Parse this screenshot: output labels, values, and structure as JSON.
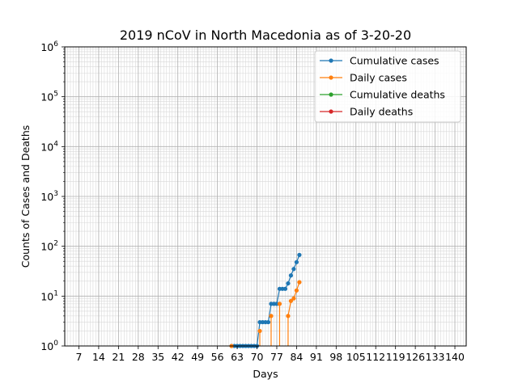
{
  "chart_data": {
    "type": "line",
    "title": "2019 nCoV in North Macedonia as of 3-20-20",
    "xlabel": "Days",
    "ylabel": "Counts of Cases and Deaths",
    "xlim": [
      2,
      144
    ],
    "ylim": [
      1,
      1000000
    ],
    "yscale": "log",
    "grid": true,
    "legend": "top-right",
    "xticks": [
      7,
      14,
      21,
      28,
      35,
      42,
      49,
      56,
      63,
      70,
      77,
      84,
      91,
      98,
      105,
      112,
      119,
      126,
      133,
      140
    ],
    "yticks": [
      {
        "value": 1,
        "base": "10",
        "exp": "0"
      },
      {
        "value": 10,
        "base": "10",
        "exp": "1"
      },
      {
        "value": 100,
        "base": "10",
        "exp": "2"
      },
      {
        "value": 1000,
        "base": "10",
        "exp": "3"
      },
      {
        "value": 10000,
        "base": "10",
        "exp": "4"
      },
      {
        "value": 100000,
        "base": "10",
        "exp": "5"
      },
      {
        "value": 1000000,
        "base": "10",
        "exp": "6"
      }
    ],
    "series": [
      {
        "name": "Cumulative cases",
        "color": "#1f77b4",
        "x": [
          61,
          62,
          63,
          64,
          65,
          66,
          67,
          68,
          69,
          70,
          71,
          72,
          73,
          74,
          75,
          76,
          77,
          78,
          79,
          80,
          81,
          82,
          83,
          84,
          85
        ],
        "y": [
          1,
          1,
          1,
          1,
          1,
          1,
          1,
          1,
          1,
          1,
          3,
          3,
          3,
          3,
          7,
          7,
          7,
          14,
          14,
          14,
          18,
          26,
          35,
          48,
          67
        ]
      },
      {
        "name": "Daily cases",
        "color": "#ff7f0e",
        "x": [
          61,
          71,
          75,
          78,
          81,
          82,
          83,
          84,
          85
        ],
        "y": [
          1,
          2,
          4,
          7,
          4,
          8,
          9,
          13,
          19
        ]
      },
      {
        "name": "Cumulative deaths",
        "color": "#2ca02c",
        "x": [],
        "y": []
      },
      {
        "name": "Daily deaths",
        "color": "#d62728",
        "x": [],
        "y": []
      }
    ]
  }
}
